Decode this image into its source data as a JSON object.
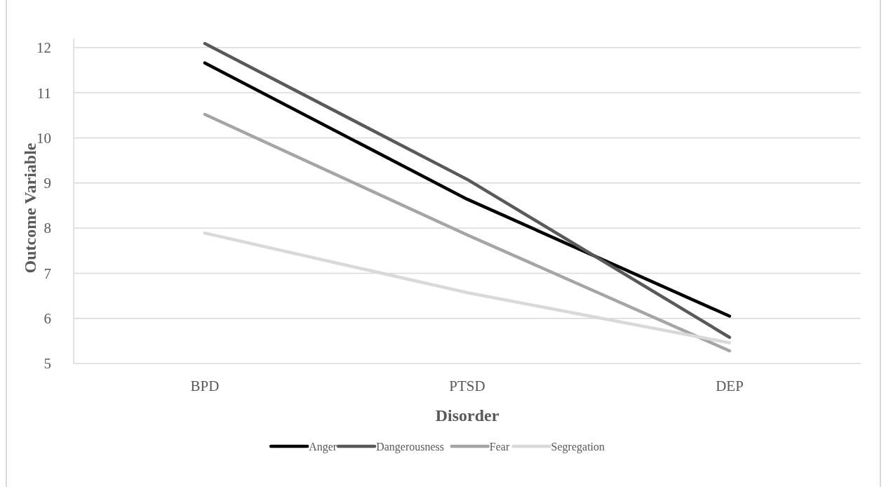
{
  "chart_data": {
    "type": "line",
    "xlabel": "Disorder",
    "ylabel": "Outcome Variable",
    "categories": [
      "BPD",
      "PTSD",
      "DEP"
    ],
    "series": [
      {
        "name": "Anger",
        "color": "#000000",
        "values": [
          11.66,
          8.64,
          6.05
        ]
      },
      {
        "name": "Dangerousness",
        "color": "#595959",
        "values": [
          12.09,
          9.08,
          5.58
        ]
      },
      {
        "name": "Fear",
        "color": "#a5a5a5",
        "values": [
          10.52,
          7.85,
          5.28
        ]
      },
      {
        "name": "Segregation",
        "color": "#d9d9d9",
        "values": [
          7.89,
          6.57,
          5.46
        ]
      }
    ],
    "ylim": [
      5,
      12.2
    ],
    "yticks": [
      5,
      6,
      7,
      8,
      9,
      10,
      11,
      12
    ],
    "grid": "y",
    "legend": "bottom",
    "marker": "none",
    "line_style": "solid"
  }
}
